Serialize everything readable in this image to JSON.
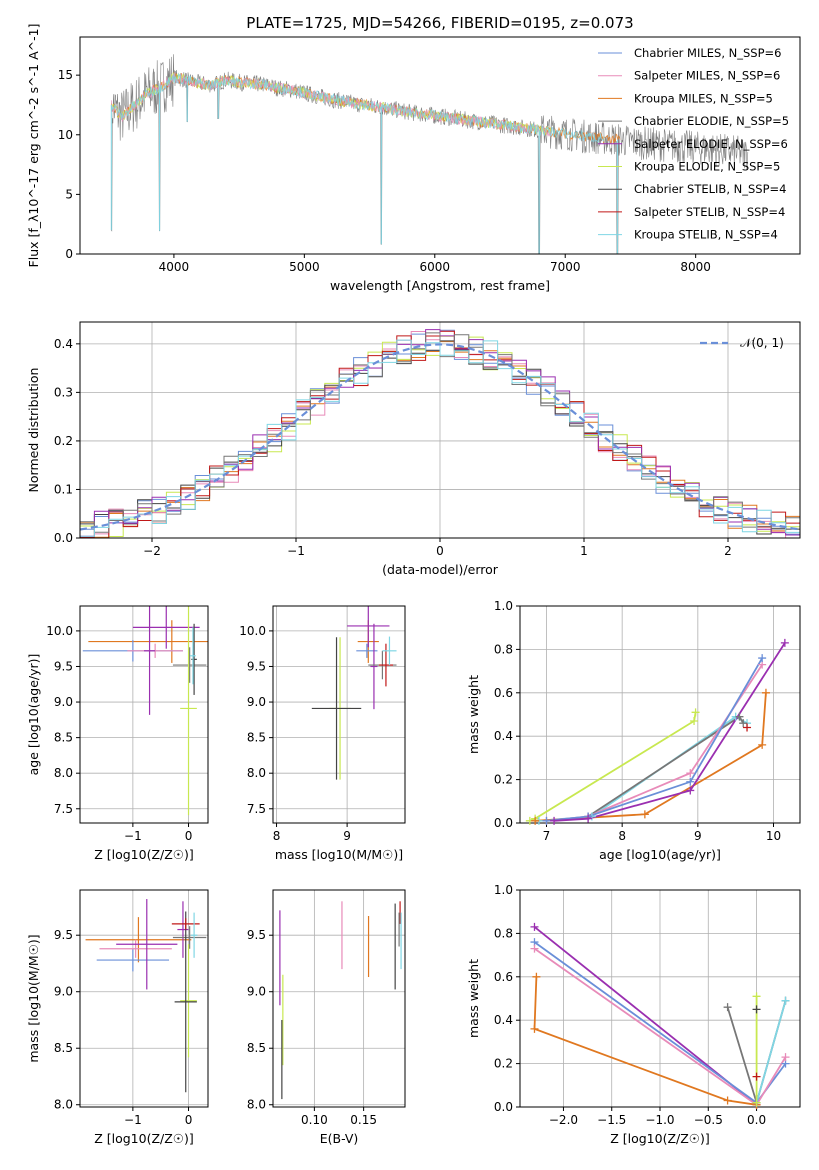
{
  "title": "PLATE=1725, MJD=54266, FIBERID=0195, z=0.073",
  "colors": {
    "blue": "#6a8fd8",
    "pink": "#e88bb9",
    "orange": "#e07820",
    "gray": "#777777",
    "purple": "#9a2fb0",
    "lime": "#c8e850",
    "dark": "#444444",
    "red": "#c01818",
    "cyan": "#7fd6e4"
  },
  "chart_data": [
    {
      "id": "spectrum",
      "type": "line",
      "xlabel": "wavelength [Angstrom, rest frame]",
      "ylabel": "Flux [f_λ10^-17 erg cm^-2 s^-1 A^-1]",
      "xlim": [
        3280,
        8800
      ],
      "ylim": [
        0,
        18.2
      ],
      "xticks": [
        4000,
        5000,
        6000,
        7000,
        8000
      ],
      "yticks": [
        0,
        5,
        10,
        15
      ],
      "grid": false,
      "legend_position": "top-right",
      "legend": [
        {
          "label": "Chabrier MILES, N_SSP=6",
          "color": "blue"
        },
        {
          "label": "Salpeter MILES, N_SSP=6",
          "color": "pink"
        },
        {
          "label": "Kroupa MILES, N_SSP=5",
          "color": "orange"
        },
        {
          "label": "Chabrier ELODIE, N_SSP=5",
          "color": "gray"
        },
        {
          "label": "Salpeter ELODIE, N_SSP=6",
          "color": "purple"
        },
        {
          "label": "Kroupa ELODIE, N_SSP=5",
          "color": "lime"
        },
        {
          "label": "Chabrier STELIB, N_SSP=4",
          "color": "dark"
        },
        {
          "label": "Salpeter STELIB, N_SSP=4",
          "color": "red"
        },
        {
          "label": "Kroupa STELIB, N_SSP=4",
          "color": "cyan"
        }
      ],
      "continuum": {
        "x": [
          3520,
          3600,
          3700,
          3800,
          3900,
          4000,
          4100,
          4200,
          4300,
          4400,
          4500,
          4600,
          4700,
          4800,
          4900,
          5000,
          5200,
          5400,
          5600,
          5800,
          6000,
          6200,
          6400,
          6600,
          6800,
          7000,
          7200,
          7400,
          7600,
          7800,
          8000,
          8200,
          8400
        ],
        "y": [
          12.5,
          11.5,
          12.5,
          13.5,
          14.0,
          14.8,
          14.6,
          14.3,
          14.2,
          14.6,
          14.4,
          14.3,
          14.2,
          13.9,
          13.8,
          13.5,
          13.0,
          12.6,
          12.3,
          11.9,
          11.6,
          11.3,
          11.0,
          10.7,
          10.4,
          10.1,
          9.8,
          9.6,
          9.3,
          9.1,
          8.9,
          8.7,
          8.4
        ]
      },
      "absorption_lines": [
        {
          "x": 3520,
          "depth": 10.5
        },
        {
          "x": 3890,
          "depth": 12.0
        },
        {
          "x": 4102,
          "depth": 3.5
        },
        {
          "x": 4340,
          "depth": 3.0
        },
        {
          "x": 5590,
          "depth": 11.5
        },
        {
          "x": 6800,
          "depth": 10.4
        },
        {
          "x": 7400,
          "depth": 9.6
        }
      ]
    },
    {
      "id": "residuals",
      "type": "line",
      "xlabel": "(data-model)/error",
      "ylabel": "Normed distribution",
      "xlim": [
        -2.5,
        2.5
      ],
      "ylim": [
        0,
        0.445
      ],
      "xticks": [
        -2,
        -1,
        0,
        1,
        2
      ],
      "yticks": [
        0.0,
        0.1,
        0.2,
        0.3,
        0.4
      ],
      "grid": true,
      "legend_position": "top-right",
      "gaussian": {
        "label": "𝒩(0, 1)",
        "color": "#6a8fd8",
        "mean": 0,
        "sigma": 1
      }
    },
    {
      "id": "age_vs_Z",
      "type": "scatter",
      "xlabel": "Z [log10(Z/Z☉)]",
      "ylabel": "age  [log10(age/yr)]",
      "xlim": [
        -1.95,
        0.35
      ],
      "ylim": [
        7.3,
        10.35
      ],
      "xticks": [
        -1,
        0
      ],
      "yticks": [
        7.5,
        8.0,
        8.5,
        9.0,
        9.5,
        10.0
      ],
      "grid": true,
      "points": [
        {
          "color": "orange",
          "x": -0.3,
          "y": 9.85,
          "xerr": 1.5,
          "yerr": 0.3
        },
        {
          "color": "blue",
          "x": -1.0,
          "y": 9.72,
          "xerr": 0.9,
          "yerr": 0.15
        },
        {
          "color": "pink",
          "x": -0.6,
          "y": 9.72,
          "xerr": 0.5,
          "yerr": 0.1
        },
        {
          "color": "purple",
          "x": -0.4,
          "y": 10.05,
          "xerr": 0.6,
          "yerr": 0.3
        },
        {
          "color": "purple",
          "x": -0.7,
          "y": 9.72,
          "xerr": 0.1,
          "yerr": 0.9
        },
        {
          "color": "gray",
          "x": 0.02,
          "y": 9.52,
          "xerr": 0.3,
          "yerr": 0.25
        },
        {
          "color": "lime",
          "x": 0.0,
          "y": 8.91,
          "xerr": 0.15,
          "yerr": 1.5
        },
        {
          "color": "dark",
          "x": 0.1,
          "y": 9.6,
          "xerr": 0.05,
          "yerr": 0.5
        },
        {
          "color": "cyan",
          "x": 0.08,
          "y": 9.65,
          "xerr": 0.05,
          "yerr": 0.4
        }
      ]
    },
    {
      "id": "age_vs_mass",
      "type": "scatter",
      "xlabel": "mass [log10(M/M☉)]",
      "ylabel": "",
      "xlim": [
        7.95,
        9.82
      ],
      "ylim": [
        7.3,
        10.35
      ],
      "xticks": [
        8,
        9
      ],
      "yticks": [
        7.5,
        8.0,
        8.5,
        9.0,
        9.5,
        10.0
      ],
      "grid": true,
      "points": [
        {
          "color": "orange",
          "x": 9.3,
          "y": 9.85,
          "xerr": 0.15,
          "yerr": 0.3
        },
        {
          "color": "blue",
          "x": 9.28,
          "y": 9.72,
          "xerr": 0.15,
          "yerr": 0.1
        },
        {
          "color": "purple",
          "x": 9.3,
          "y": 10.07,
          "xerr": 0.3,
          "yerr": 0.3
        },
        {
          "color": "purple",
          "x": 9.38,
          "y": 9.5,
          "xerr": 0.05,
          "yerr": 0.6
        },
        {
          "color": "gray",
          "x": 9.5,
          "y": 9.52,
          "xerr": 0.2,
          "yerr": 0.2
        },
        {
          "color": "lime",
          "x": 8.9,
          "y": 8.91,
          "xerr": 0.15,
          "yerr": 1.0
        },
        {
          "color": "dark",
          "x": 8.85,
          "y": 8.91,
          "xerr": 0.35,
          "yerr": 1.0
        },
        {
          "color": "red",
          "x": 9.55,
          "y": 9.52,
          "xerr": 0.1,
          "yerr": 0.3
        },
        {
          "color": "cyan",
          "x": 9.6,
          "y": 9.72,
          "xerr": 0.1,
          "yerr": 0.2
        }
      ]
    },
    {
      "id": "massweight_vs_age",
      "type": "line",
      "xlabel": "age  [log10(age/yr)]",
      "ylabel": "mass weight",
      "xlim": [
        6.65,
        10.35
      ],
      "ylim": [
        0,
        1.0
      ],
      "xticks": [
        7,
        8,
        9,
        10
      ],
      "yticks": [
        0.0,
        0.2,
        0.4,
        0.6,
        0.8,
        1.0
      ],
      "grid": true,
      "series": [
        {
          "color": "lime",
          "x": [
            6.78,
            6.85,
            8.95,
            8.97
          ],
          "y": [
            0.01,
            0.02,
            0.47,
            0.51
          ]
        },
        {
          "color": "cyan",
          "x": [
            6.9,
            7.6,
            9.5,
            9.65
          ],
          "y": [
            0.01,
            0.03,
            0.49,
            0.46
          ]
        },
        {
          "color": "gray",
          "x": [
            7.55,
            9.55,
            9.6
          ],
          "y": [
            0.03,
            0.49,
            0.46
          ]
        },
        {
          "color": "orange",
          "x": [
            6.85,
            8.3,
            9.85,
            9.9
          ],
          "y": [
            0.01,
            0.04,
            0.36,
            0.6
          ]
        },
        {
          "color": "pink",
          "x": [
            7.0,
            7.55,
            8.9,
            9.85
          ],
          "y": [
            0.01,
            0.03,
            0.23,
            0.73
          ]
        },
        {
          "color": "blue",
          "x": [
            7.0,
            7.55,
            8.9,
            9.85
          ],
          "y": [
            0.01,
            0.03,
            0.19,
            0.76
          ]
        },
        {
          "color": "purple",
          "x": [
            7.1,
            7.55,
            8.9,
            10.15
          ],
          "y": [
            0.01,
            0.02,
            0.15,
            0.83
          ]
        },
        {
          "color": "red",
          "x": [
            9.65
          ],
          "y": [
            0.44
          ]
        }
      ]
    },
    {
      "id": "mass_vs_Z",
      "type": "scatter",
      "xlabel": "Z [log10(Z/Z☉)]",
      "ylabel": "mass [log10(M/M☉)]",
      "xlim": [
        -1.95,
        0.35
      ],
      "ylim": [
        7.98,
        9.9
      ],
      "xticks": [
        -1,
        0
      ],
      "yticks": [
        8.0,
        8.5,
        9.0,
        9.5
      ],
      "grid": true,
      "points": [
        {
          "color": "orange",
          "x": -0.9,
          "y": 9.46,
          "xerr": 0.95,
          "yerr": 0.2
        },
        {
          "color": "blue",
          "x": -1.0,
          "y": 9.28,
          "xerr": 0.65,
          "yerr": 0.1
        },
        {
          "color": "pink",
          "x": -0.95,
          "y": 9.38,
          "xerr": 0.65,
          "yerr": 0.08
        },
        {
          "color": "purple",
          "x": -0.75,
          "y": 9.42,
          "xerr": 0.55,
          "yerr": 0.4
        },
        {
          "color": "purple",
          "x": -0.1,
          "y": 9.55,
          "xerr": 0.1,
          "yerr": 0.25
        },
        {
          "color": "gray",
          "x": 0.02,
          "y": 9.48,
          "xerr": 0.3,
          "yerr": 0.1
        },
        {
          "color": "lime",
          "x": 0.0,
          "y": 8.92,
          "xerr": 0.15,
          "yerr": 0.5
        },
        {
          "color": "dark",
          "x": -0.05,
          "y": 8.91,
          "xerr": 0.2,
          "yerr": 0.8
        },
        {
          "color": "red",
          "x": -0.05,
          "y": 9.6,
          "xerr": 0.25,
          "yerr": 0.05
        },
        {
          "color": "cyan",
          "x": 0.1,
          "y": 9.5,
          "xerr": 0.06,
          "yerr": 0.2
        }
      ]
    },
    {
      "id": "mass_vs_ebv",
      "type": "scatter",
      "xlabel": "E(B-V)",
      "ylabel": "",
      "xlim": [
        0.058,
        0.192
      ],
      "ylim": [
        7.98,
        9.9
      ],
      "xticks": [
        0.1,
        0.15
      ],
      "yticks": [
        8.0,
        8.5,
        9.0,
        9.5
      ],
      "grid": true,
      "points": [
        {
          "color": "purple",
          "x": 0.065,
          "y": 9.3,
          "xerr": 0,
          "yerr": 0.42
        },
        {
          "color": "lime",
          "x": 0.068,
          "y": 8.75,
          "xerr": 0,
          "yerr": 0.4
        },
        {
          "color": "dark",
          "x": 0.067,
          "y": 8.4,
          "xerr": 0,
          "yerr": 0.35
        },
        {
          "color": "pink",
          "x": 0.128,
          "y": 9.5,
          "xerr": 0,
          "yerr": 0.3
        },
        {
          "color": "orange",
          "x": 0.155,
          "y": 9.4,
          "xerr": 0,
          "yerr": 0.27
        },
        {
          "color": "dark",
          "x": 0.182,
          "y": 9.4,
          "xerr": 0,
          "yerr": 0.38
        },
        {
          "color": "red",
          "x": 0.187,
          "y": 9.7,
          "xerr": 0,
          "yerr": 0.1
        },
        {
          "color": "cyan",
          "x": 0.188,
          "y": 9.45,
          "xerr": 0,
          "yerr": 0.25
        },
        {
          "color": "gray",
          "x": 0.186,
          "y": 9.55,
          "xerr": 0,
          "yerr": 0.15
        }
      ]
    },
    {
      "id": "massweight_vs_Z",
      "type": "line",
      "xlabel": "Z [log10(Z/Z☉)]",
      "ylabel": "mass weight",
      "xlim": [
        -2.45,
        0.45
      ],
      "ylim": [
        0,
        1.0
      ],
      "xticks": [
        -2.0,
        -1.5,
        -1.0,
        -0.5,
        0.0
      ],
      "yticks": [
        0.0,
        0.2,
        0.4,
        0.6,
        0.8,
        1.0
      ],
      "grid": true,
      "series": [
        {
          "color": "purple",
          "x": [
            -2.3,
            0.0
          ],
          "y": [
            0.83,
            0.01
          ]
        },
        {
          "color": "blue",
          "x": [
            -2.3,
            0.0,
            0.3
          ],
          "y": [
            0.76,
            0.02,
            0.2
          ]
        },
        {
          "color": "pink",
          "x": [
            -2.3,
            0.0,
            0.3
          ],
          "y": [
            0.73,
            0.01,
            0.23
          ]
        },
        {
          "color": "orange",
          "x": [
            -2.28,
            -2.3,
            -0.3,
            0.0
          ],
          "y": [
            0.6,
            0.36,
            0.03,
            0.01
          ]
        },
        {
          "color": "gray",
          "x": [
            -0.3,
            0.0,
            0.3
          ],
          "y": [
            0.46,
            0.02,
            0.49
          ]
        },
        {
          "color": "cyan",
          "x": [
            0.0,
            0.3
          ],
          "y": [
            0.02,
            0.49
          ]
        },
        {
          "color": "lime",
          "x": [
            0.0,
            0.0
          ],
          "y": [
            0.02,
            0.51
          ]
        },
        {
          "color": "dark",
          "x": [
            0.0
          ],
          "y": [
            0.45
          ]
        },
        {
          "color": "red",
          "x": [
            0.0
          ],
          "y": [
            0.14
          ]
        }
      ]
    }
  ]
}
